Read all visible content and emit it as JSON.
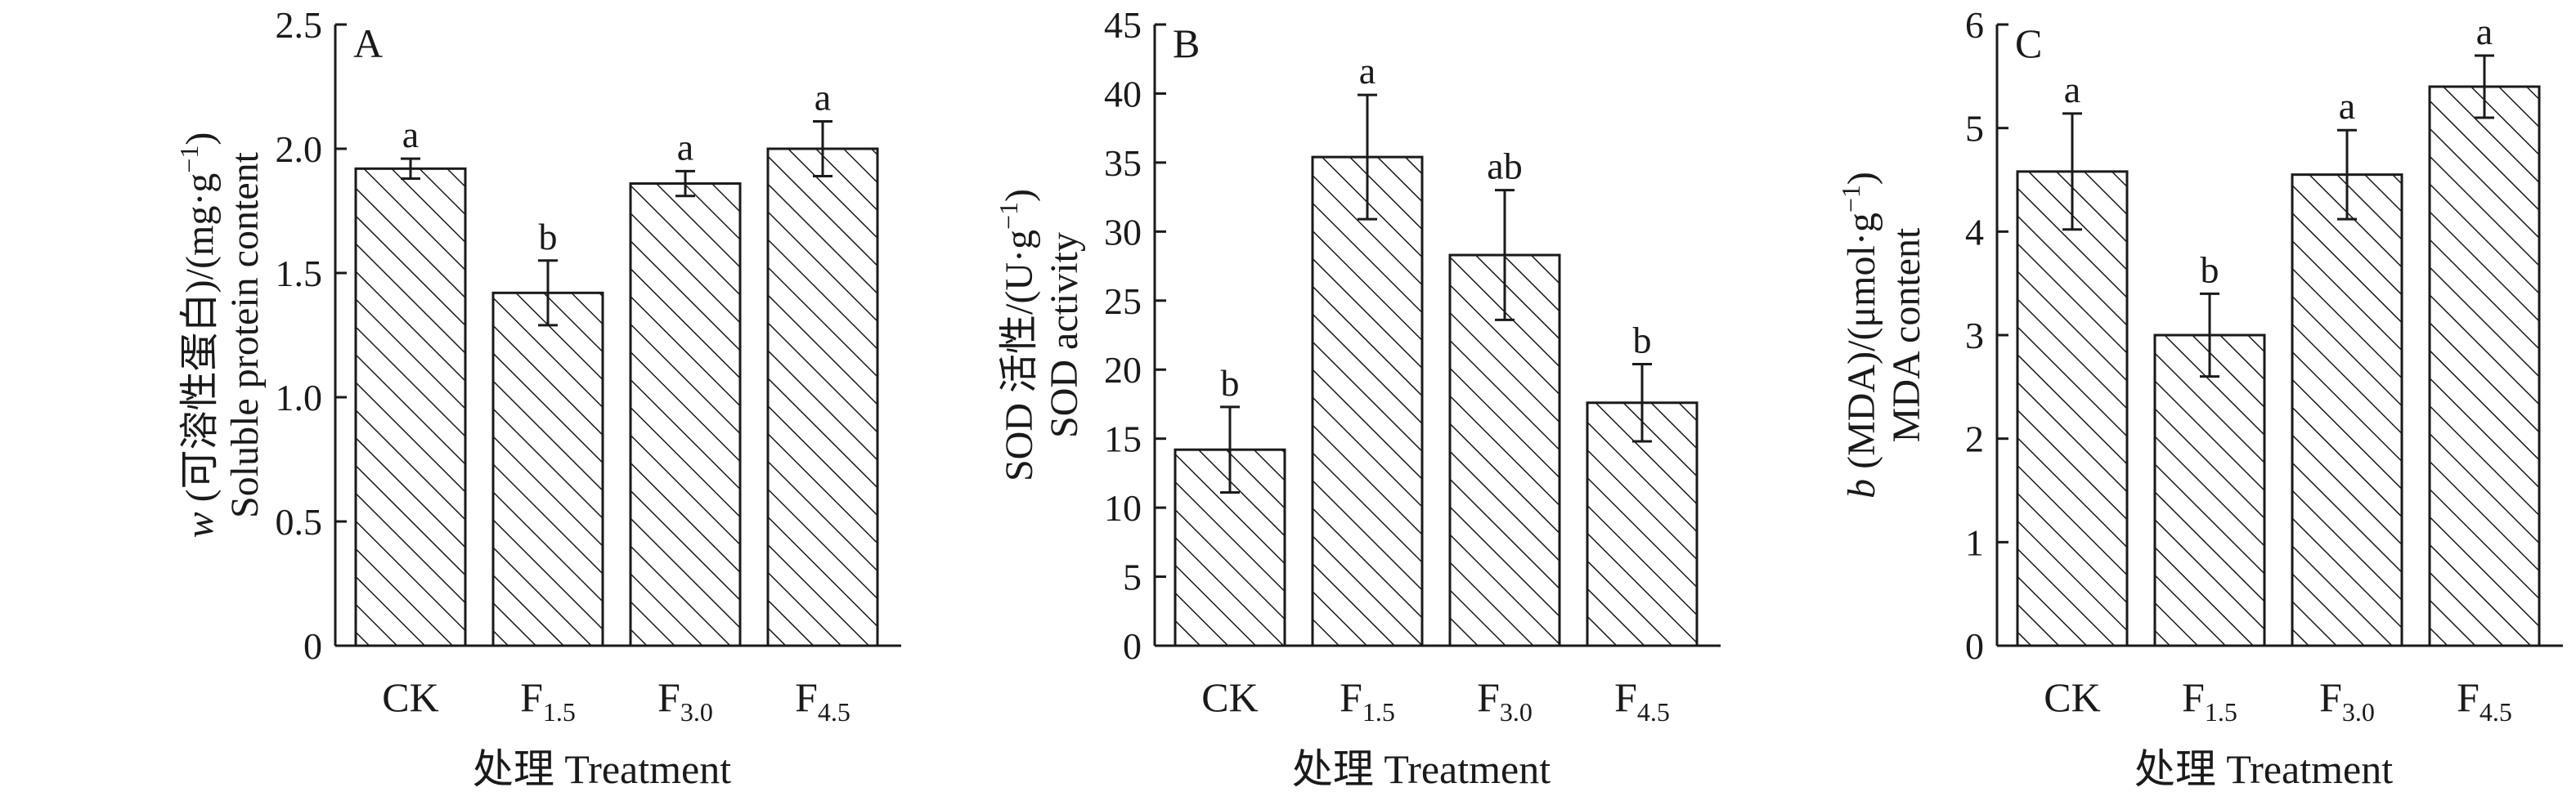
{
  "chart_data": [
    {
      "type": "bar",
      "panel_label": "A",
      "categories": [
        "CK",
        "F1.5",
        "F3.0",
        "F4.5"
      ],
      "category_labels": [
        {
          "main": "CK",
          "sub": ""
        },
        {
          "main": "F",
          "sub": "1.5"
        },
        {
          "main": "F",
          "sub": "3.0"
        },
        {
          "main": "F",
          "sub": "4.5"
        }
      ],
      "values": [
        1.92,
        1.42,
        1.86,
        2.0
      ],
      "errors": [
        0.04,
        0.13,
        0.05,
        0.11
      ],
      "significance": [
        "a",
        "b",
        "a",
        "a"
      ],
      "ylim": [
        0,
        2.5
      ],
      "yticks": [
        0,
        0.5,
        1.0,
        1.5,
        2.0,
        2.5
      ],
      "ytick_labels": [
        "0",
        "0.5",
        "1.0",
        "1.5",
        "2.0",
        "2.5"
      ],
      "ylabel_line1_var": "w",
      "ylabel_line1_rest": " (可溶性蛋白)/(mg·g",
      "ylabel_line1_sup": "−1",
      "ylabel_line1_end": ")",
      "ylabel_line2": "Soluble protein content",
      "xlabel": "处理 Treatment",
      "fill": "hatched"
    },
    {
      "type": "bar",
      "panel_label": "B",
      "categories": [
        "CK",
        "F1.5",
        "F3.0",
        "F4.5"
      ],
      "category_labels": [
        {
          "main": "CK",
          "sub": ""
        },
        {
          "main": "F",
          "sub": "1.5"
        },
        {
          "main": "F",
          "sub": "3.0"
        },
        {
          "main": "F",
          "sub": "4.5"
        }
      ],
      "values": [
        14.2,
        35.4,
        28.3,
        17.6
      ],
      "errors": [
        3.1,
        4.5,
        4.7,
        2.8
      ],
      "significance": [
        "b",
        "a",
        "ab",
        "b"
      ],
      "ylim": [
        0,
        45
      ],
      "yticks": [
        0,
        5,
        10,
        15,
        20,
        25,
        30,
        35,
        40,
        45
      ],
      "ytick_labels": [
        "0",
        "5",
        "10",
        "15",
        "20",
        "25",
        "30",
        "35",
        "40",
        "45"
      ],
      "ylabel_line1_var": "",
      "ylabel_line1_rest": "SOD 活性/(U·g",
      "ylabel_line1_sup": "−1",
      "ylabel_line1_end": ")",
      "ylabel_line2": "SOD activity",
      "xlabel": "处理 Treatment",
      "fill": "hatched"
    },
    {
      "type": "bar",
      "panel_label": "C",
      "categories": [
        "CK",
        "F1.5",
        "F3.0",
        "F4.5"
      ],
      "category_labels": [
        {
          "main": "CK",
          "sub": ""
        },
        {
          "main": "F",
          "sub": "1.5"
        },
        {
          "main": "F",
          "sub": "3.0"
        },
        {
          "main": "F",
          "sub": "4.5"
        }
      ],
      "values": [
        4.58,
        3.0,
        4.55,
        5.4
      ],
      "errors": [
        0.56,
        0.4,
        0.43,
        0.3
      ],
      "significance": [
        "a",
        "b",
        "a",
        "a"
      ],
      "ylim": [
        0,
        6
      ],
      "yticks": [
        0,
        1,
        2,
        3,
        4,
        5,
        6
      ],
      "ytick_labels": [
        "0",
        "1",
        "2",
        "3",
        "4",
        "5",
        "6"
      ],
      "ylabel_line1_var": "b",
      "ylabel_line1_rest": " (MDA)/(μmol·g",
      "ylabel_line1_sup": "−1",
      "ylabel_line1_end": ")",
      "ylabel_line2": "MDA content",
      "xlabel": "处理 Treatment",
      "fill": "hatched"
    }
  ]
}
